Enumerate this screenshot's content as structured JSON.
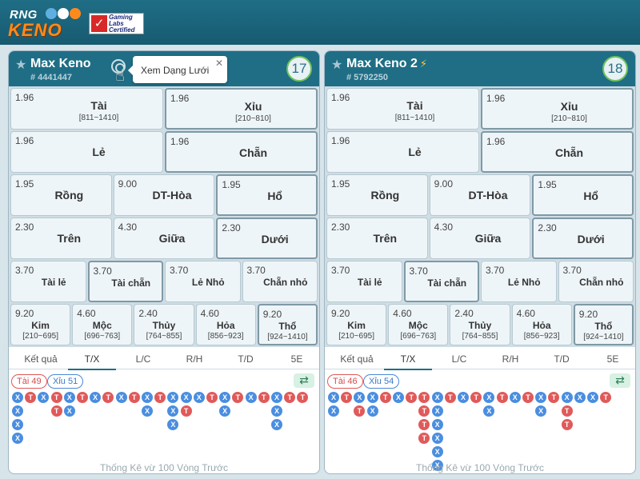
{
  "brand": {
    "logo_rng": "RNG",
    "logo_keno": "KENO",
    "cert_lines": [
      "Gaming",
      "Labs",
      "Certified"
    ]
  },
  "colors": {
    "header": "#1f6e86",
    "tai_red": "#e05a5a",
    "xiu_blue": "#4a8ee0",
    "timer_green": "#6ec25b"
  },
  "tooltip": {
    "text": "Xem Dạng Lưới",
    "close": "✕"
  },
  "tabs": [
    "Kết quả",
    "T/X",
    "L/C",
    "R/H",
    "T/D",
    "5E"
  ],
  "active_tab": "T/X",
  "footer": "Thống Kê vừ 100 Vòng Trước",
  "games": [
    {
      "title": "Max Keno",
      "id": "# 4441447",
      "countdown": "17",
      "lightning": false,
      "rows": [
        [
          {
            "odds": "1.96",
            "name": "Tài",
            "range": "[811~1410]"
          },
          {
            "odds": "1.96",
            "name": "Xỉu",
            "range": "[210~810]"
          }
        ],
        [
          {
            "odds": "1.96",
            "name": "Lẻ",
            "range": ""
          },
          {
            "odds": "1.96",
            "name": "Chẵn",
            "range": ""
          }
        ],
        [
          {
            "odds": "1.95",
            "name": "Rồng",
            "range": ""
          },
          {
            "odds": "9.00",
            "name": "DT-Hòa",
            "range": ""
          },
          {
            "odds": "1.95",
            "name": "Hổ",
            "range": ""
          }
        ],
        [
          {
            "odds": "2.30",
            "name": "Trên",
            "range": ""
          },
          {
            "odds": "4.30",
            "name": "Giữa",
            "range": ""
          },
          {
            "odds": "2.30",
            "name": "Dưới",
            "range": ""
          }
        ],
        [
          {
            "odds": "3.70",
            "name": "Tài lẻ",
            "range": ""
          },
          {
            "odds": "3.70",
            "name": "Tài chẵn",
            "range": ""
          },
          {
            "odds": "3.70",
            "name": "Lẻ Nhỏ",
            "range": ""
          },
          {
            "odds": "3.70",
            "name": "Chẵn nhỏ",
            "range": ""
          }
        ],
        [
          {
            "odds": "9.20",
            "name": "Kim",
            "range": "[210~695]"
          },
          {
            "odds": "4.60",
            "name": "Mộc",
            "range": "[696~763]"
          },
          {
            "odds": "2.40",
            "name": "Thủy",
            "range": "[764~855]"
          },
          {
            "odds": "4.60",
            "name": "Hỏa",
            "range": "[856~923]"
          },
          {
            "odds": "9.20",
            "name": "Thổ",
            "range": "[924~1410]"
          }
        ]
      ],
      "tai_chip": "Tài 49",
      "xiu_chip": "Xỉu 51",
      "road": [
        "XXXX",
        "T",
        "X",
        "TT",
        "XX",
        "T",
        "X",
        "T",
        "X",
        "T",
        "XX",
        "T",
        "XXX",
        "XT",
        "X",
        "T",
        "XX",
        "T",
        "X",
        "T",
        "XXX",
        "T",
        "T"
      ]
    },
    {
      "title": "Max Keno 2",
      "id": "# 5792250",
      "countdown": "18",
      "lightning": true,
      "rows": [
        [
          {
            "odds": "1.96",
            "name": "Tài",
            "range": "[811~1410]"
          },
          {
            "odds": "1.96",
            "name": "Xỉu",
            "range": "[210~810]"
          }
        ],
        [
          {
            "odds": "1.96",
            "name": "Lẻ",
            "range": ""
          },
          {
            "odds": "1.96",
            "name": "Chẵn",
            "range": ""
          }
        ],
        [
          {
            "odds": "1.95",
            "name": "Rồng",
            "range": ""
          },
          {
            "odds": "9.00",
            "name": "DT-Hòa",
            "range": ""
          },
          {
            "odds": "1.95",
            "name": "Hổ",
            "range": ""
          }
        ],
        [
          {
            "odds": "2.30",
            "name": "Trên",
            "range": ""
          },
          {
            "odds": "4.30",
            "name": "Giữa",
            "range": ""
          },
          {
            "odds": "2.30",
            "name": "Dưới",
            "range": ""
          }
        ],
        [
          {
            "odds": "3.70",
            "name": "Tài lẻ",
            "range": ""
          },
          {
            "odds": "3.70",
            "name": "Tài chẵn",
            "range": ""
          },
          {
            "odds": "3.70",
            "name": "Lẻ Nhỏ",
            "range": ""
          },
          {
            "odds": "3.70",
            "name": "Chẵn nhỏ",
            "range": ""
          }
        ],
        [
          {
            "odds": "9.20",
            "name": "Kim",
            "range": "[210~695]"
          },
          {
            "odds": "4.60",
            "name": "Mộc",
            "range": "[696~763]"
          },
          {
            "odds": "2.40",
            "name": "Thủy",
            "range": "[764~855]"
          },
          {
            "odds": "4.60",
            "name": "Hỏa",
            "range": "[856~923]"
          },
          {
            "odds": "9.20",
            "name": "Thổ",
            "range": "[924~1410]"
          }
        ]
      ],
      "tai_chip": "Tài 46",
      "xiu_chip": "Xỉu 54",
      "road": [
        "XX",
        "T",
        "XT",
        "XX",
        "T",
        "X",
        "T",
        "TTTT",
        "XXXXXX",
        "T",
        "X",
        "T",
        "XX",
        "T",
        "X",
        "T",
        "XX",
        "T",
        "XTT",
        "X",
        "X",
        "T"
      ]
    }
  ]
}
